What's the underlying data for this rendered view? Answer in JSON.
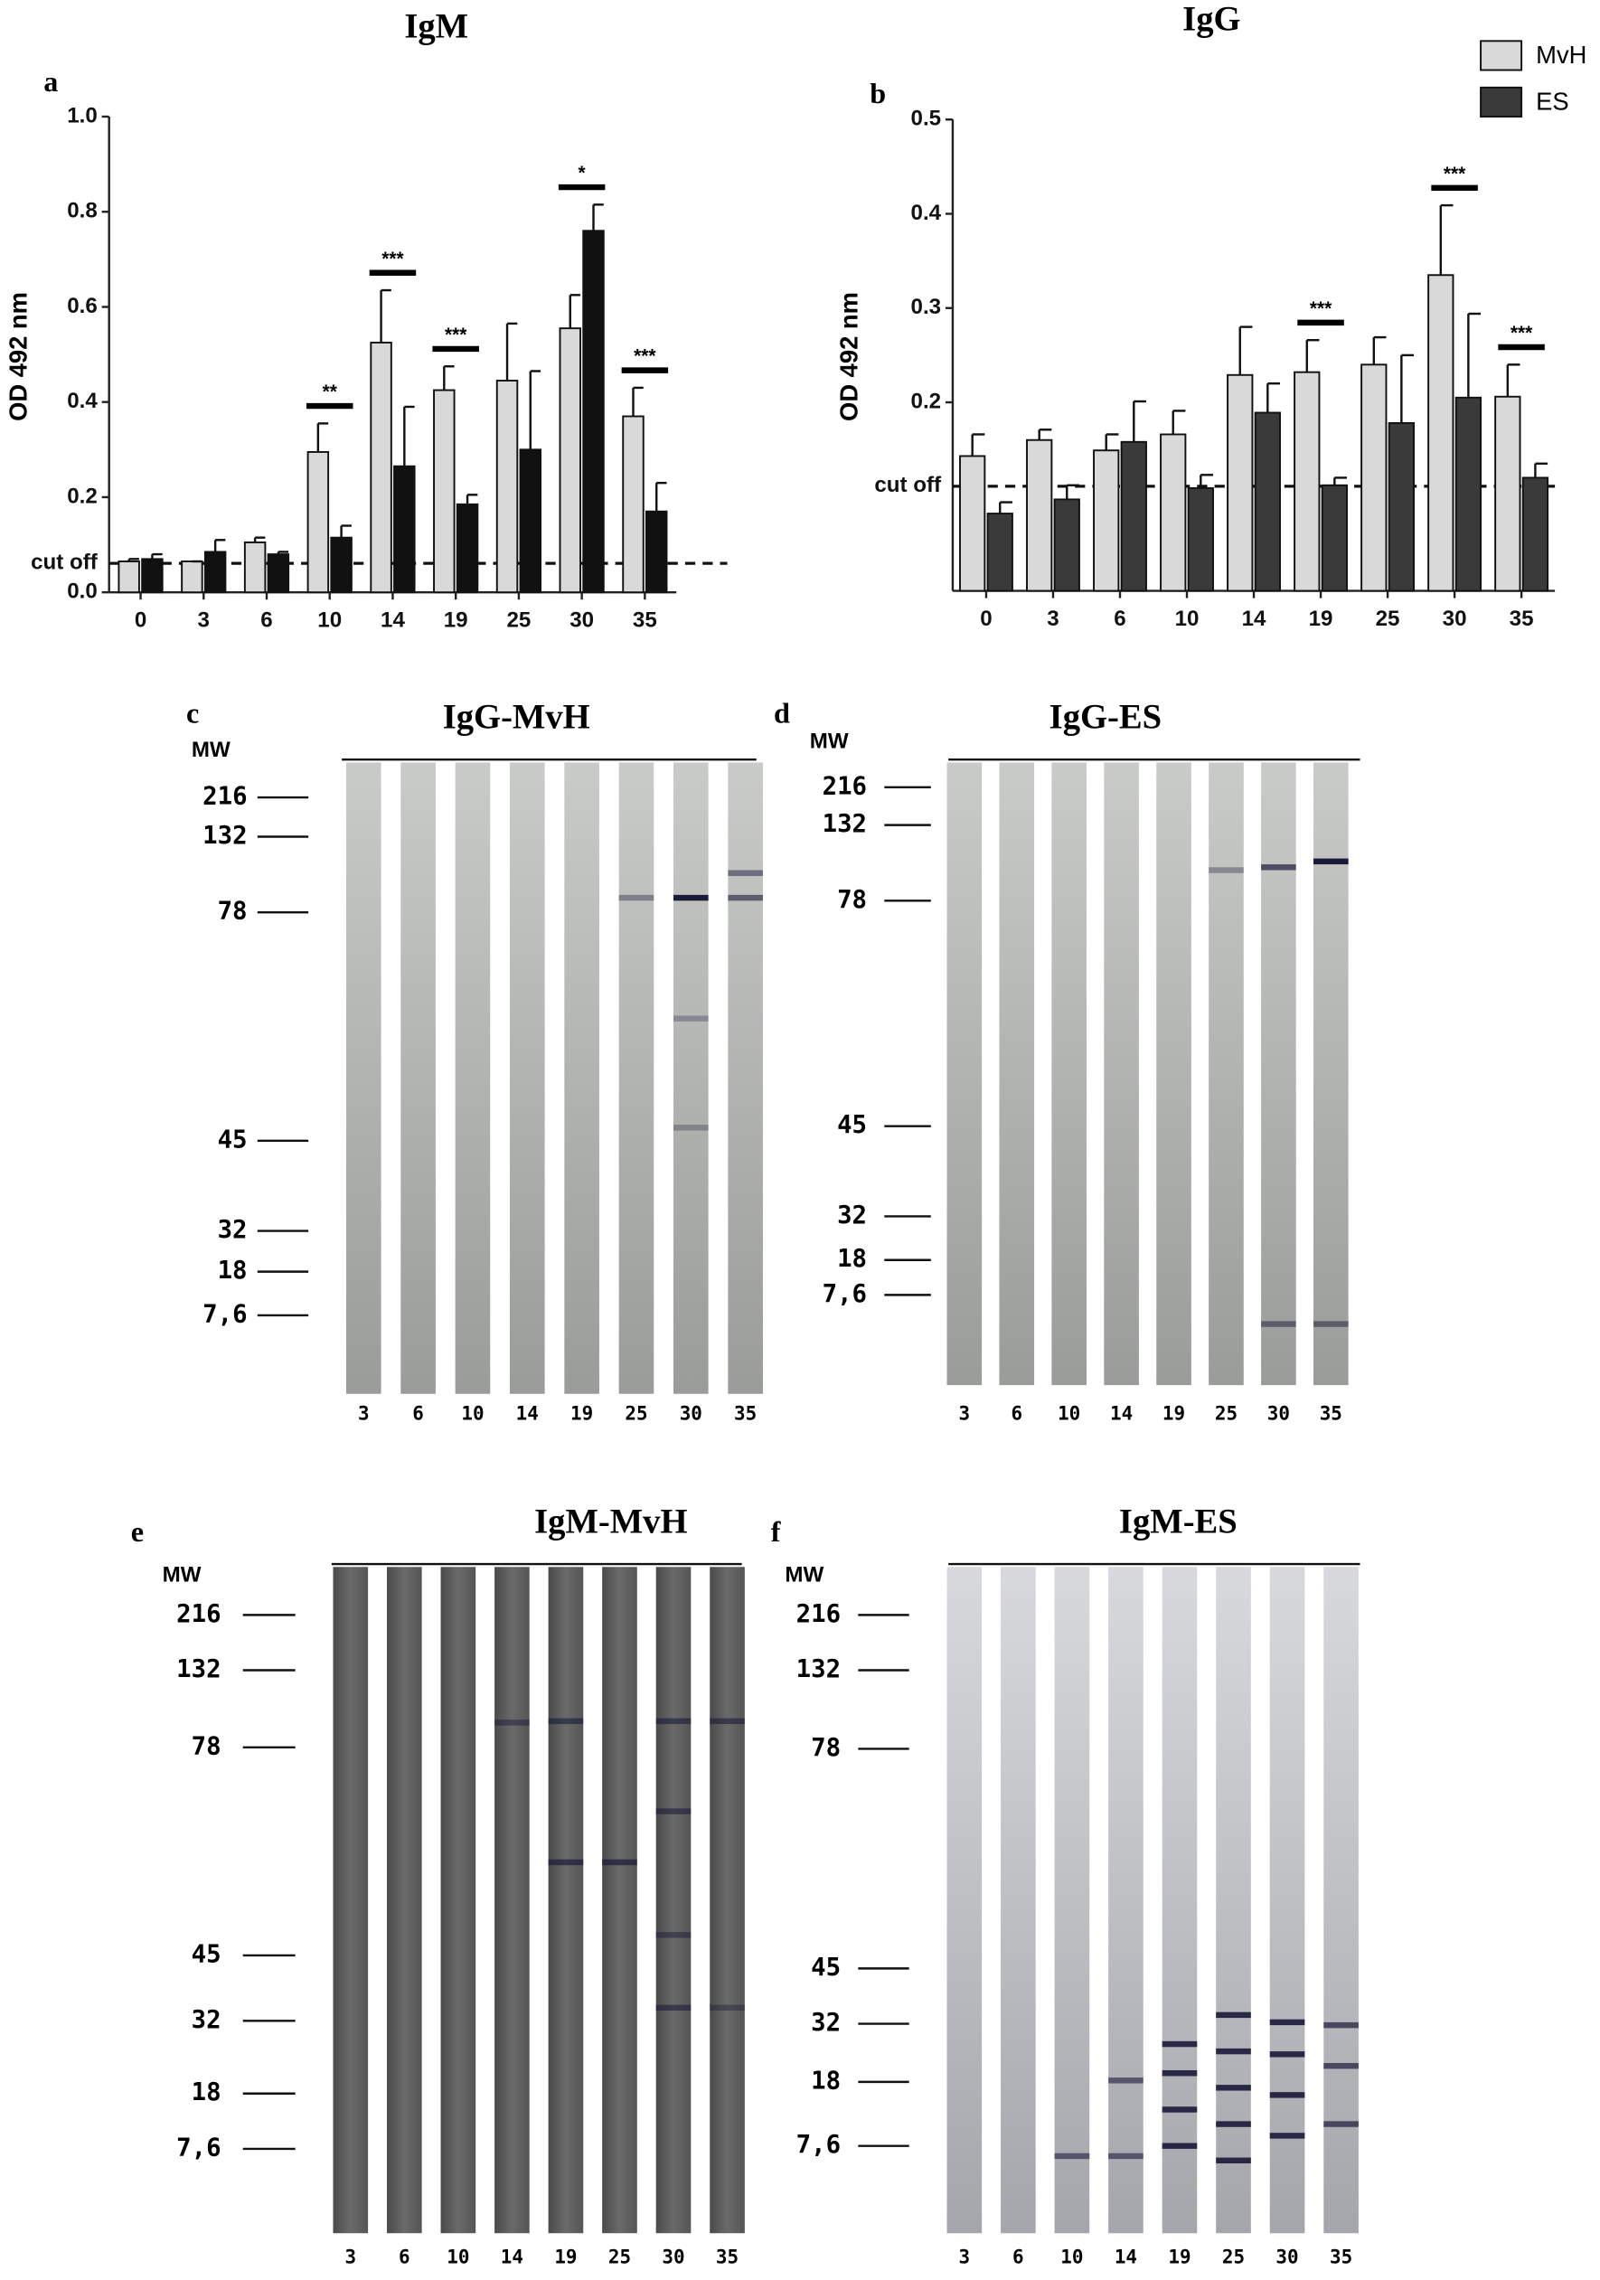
{
  "chart_data": [
    {
      "type": "bar",
      "panel": "a",
      "title": "IgM",
      "ylabel": "OD 492 nm",
      "categories": [
        "0",
        "3",
        "6",
        "10",
        "14",
        "19",
        "25",
        "30",
        "35"
      ],
      "ylim": [
        0,
        1.0
      ],
      "yticks": [
        {
          "value": 0,
          "label": "0.0"
        },
        0.2,
        0.4,
        0.6,
        0.8,
        {
          "value": 1.0,
          "label": "1.0"
        }
      ],
      "cutoff": {
        "value": 0.061,
        "label": "cut off"
      },
      "legend": false,
      "series": [
        {
          "name": "MvH",
          "color": "#d9d9d9",
          "values": [
            0.065,
            0.065,
            0.105,
            0.295,
            0.525,
            0.425,
            0.445,
            0.555,
            0.37
          ],
          "errors": [
            0.005,
            0.0,
            0.01,
            0.06,
            0.11,
            0.05,
            0.12,
            0.07,
            0.06
          ]
        },
        {
          "name": "ES",
          "color": "#111111",
          "values": [
            0.07,
            0.085,
            0.08,
            0.115,
            0.265,
            0.185,
            0.3,
            0.76,
            0.17
          ],
          "errors": [
            0.01,
            0.025,
            0.005,
            0.025,
            0.125,
            0.02,
            0.165,
            0.055,
            0.06
          ]
        }
      ],
      "annotations": [
        {
          "category": "10",
          "text": "**"
        },
        {
          "category": "14",
          "text": "***"
        },
        {
          "category": "19",
          "text": "***"
        },
        {
          "category": "30",
          "text": "*"
        },
        {
          "category": "35",
          "text": "***"
        }
      ]
    },
    {
      "type": "bar",
      "panel": "b",
      "title": "IgG",
      "ylabel": "OD 492 nm",
      "categories": [
        "0",
        "3",
        "6",
        "10",
        "14",
        "19",
        "25",
        "30",
        "35"
      ],
      "ylim": [
        0,
        0.5
      ],
      "yticks": [
        0.2,
        0.3,
        0.4,
        0.5
      ],
      "cutoff": {
        "value": 0.111,
        "label": "cut off"
      },
      "legend": true,
      "series": [
        {
          "name": "MvH",
          "color": "#d9d9d9",
          "values": [
            0.143,
            0.16,
            0.149,
            0.166,
            0.229,
            0.232,
            0.24,
            0.335,
            0.206
          ],
          "errors": [
            0.023,
            0.011,
            0.017,
            0.025,
            0.051,
            0.034,
            0.029,
            0.074,
            0.034
          ]
        },
        {
          "name": "ES",
          "color": "#3a3a3a",
          "values": [
            0.082,
            0.097,
            0.158,
            0.109,
            0.189,
            0.112,
            0.178,
            0.205,
            0.12
          ],
          "errors": [
            0.012,
            0.015,
            0.043,
            0.014,
            0.031,
            0.008,
            0.072,
            0.089,
            0.015
          ]
        }
      ],
      "annotations": [
        {
          "category": "19",
          "text": "***"
        },
        {
          "category": "30",
          "text": "***"
        },
        {
          "category": "35",
          "text": "***"
        }
      ]
    }
  ],
  "blots": [
    {
      "panel": "c",
      "title": "IgG-MvH",
      "mw_label": "MW",
      "markers": [
        "216",
        "132",
        "78",
        "45",
        "32",
        "18",
        "7,6"
      ],
      "lanes": [
        "3",
        "6",
        "10",
        "14",
        "19",
        "25",
        "30",
        "35"
      ]
    },
    {
      "panel": "d",
      "title": "IgG-ES",
      "mw_label": "MW",
      "markers": [
        "216",
        "132",
        "78",
        "45",
        "32",
        "18",
        "7,6"
      ],
      "lanes": [
        "3",
        "6",
        "10",
        "14",
        "19",
        "25",
        "30",
        "35"
      ]
    },
    {
      "panel": "e",
      "title": "IgM-MvH",
      "mw_label": "MW",
      "markers": [
        "216",
        "132",
        "78",
        "45",
        "32",
        "18",
        "7,6"
      ],
      "lanes": [
        "3",
        "6",
        "10",
        "14",
        "19",
        "25",
        "30",
        "35"
      ]
    },
    {
      "panel": "f",
      "title": "IgM-ES",
      "mw_label": "MW",
      "markers": [
        "216",
        "132",
        "78",
        "45",
        "32",
        "18",
        "7,6"
      ],
      "lanes": [
        "3",
        "6",
        "10",
        "14",
        "19",
        "25",
        "30",
        "35"
      ]
    }
  ]
}
